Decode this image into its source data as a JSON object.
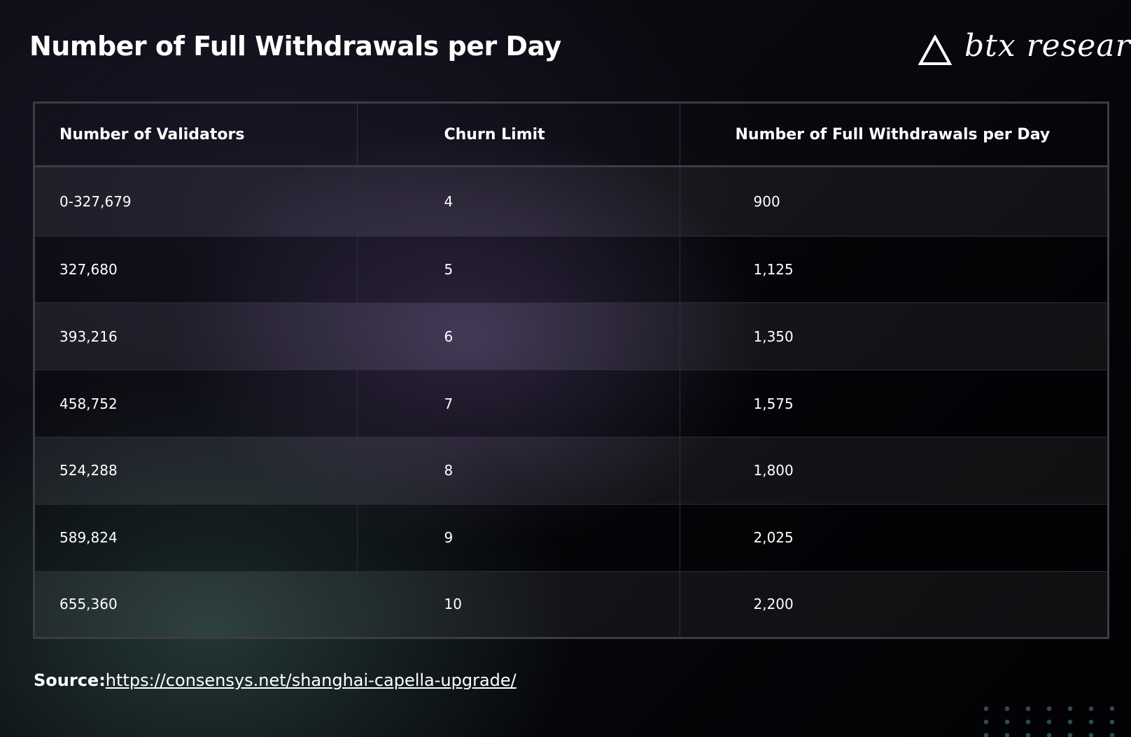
{
  "title": "Number of Full Withdrawals per Day",
  "logo": {
    "text": "btx research",
    "icon": "triangle-logo-icon"
  },
  "chart_data": {
    "type": "table",
    "columns": [
      "Number of Validators",
      "Churn Limit",
      "Number of Full Withdrawals per Day"
    ],
    "rows": [
      [
        "0-327,679",
        "4",
        "900"
      ],
      [
        "327,680",
        "5",
        "1,125"
      ],
      [
        "393,216",
        "6",
        "1,350"
      ],
      [
        "458,752",
        "7",
        "1,575"
      ],
      [
        "524,288",
        "8",
        "1,800"
      ],
      [
        "589,824",
        "9",
        "2,025"
      ],
      [
        "655,360",
        "10",
        "2,200"
      ]
    ]
  },
  "source": {
    "label": "Source:",
    "url": "https://consensys.net/shanghai-capella-upgrade/"
  },
  "colors": {
    "background": "#05050a",
    "text": "#ffffff",
    "border": "#3c3c44",
    "accent_purple": "#5a4878",
    "accent_teal": "#385c54",
    "dots": "#2f4a52"
  }
}
